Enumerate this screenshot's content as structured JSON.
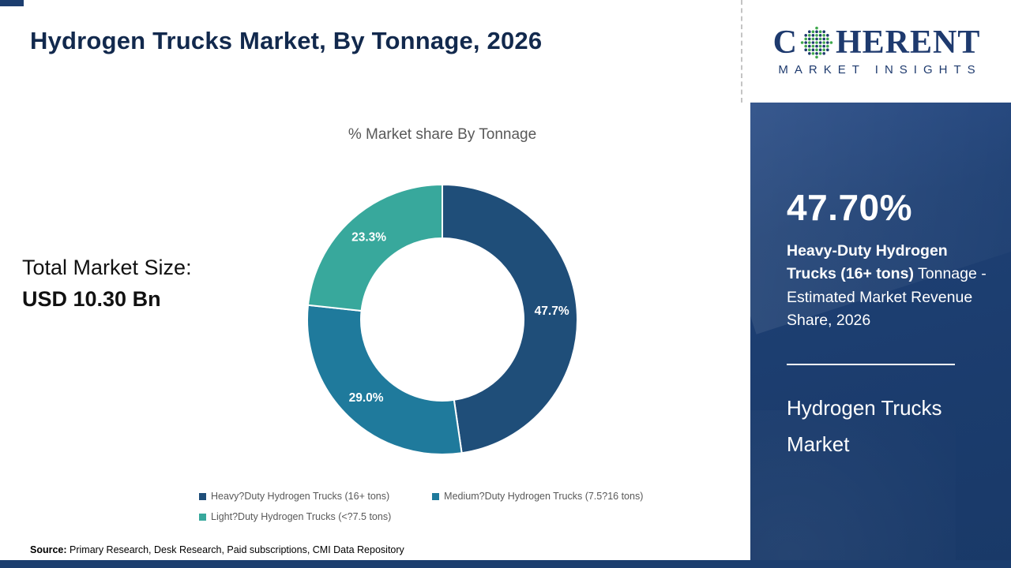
{
  "header": {
    "title": "Hydrogen Trucks Market, By Tonnage, 2026"
  },
  "logo": {
    "word_prefix": "C",
    "word_suffix": "HERENT",
    "tagline": "MARKET INSIGHTS",
    "navy_color": "#1e3a6e",
    "dot_colors": [
      "#3fa84c",
      "#1e3a6e"
    ]
  },
  "chart_data": {
    "type": "pie",
    "donut": true,
    "title": "% Market share By Tonnage",
    "labels": [
      "Heavy?Duty Hydrogen Trucks (16+ tons)",
      "Medium?Duty Hydrogen Trucks (7.5?16 tons)",
      "Light?Duty Hydrogen Trucks (<?7.5 tons)"
    ],
    "values": [
      47.7,
      29.0,
      23.3
    ],
    "value_labels": [
      "47.7%",
      "29.0%",
      "23.3%"
    ],
    "colors": [
      "#1f4e79",
      "#1f7a9c",
      "#38a89c"
    ],
    "legend_position": "bottom",
    "start_angle": "top",
    "direction": "clockwise"
  },
  "left_stat": {
    "label": "Total Market Size:",
    "value": "USD 10.30 Bn"
  },
  "source": {
    "label": "Source:",
    "text": " Primary Research, Desk Research, Paid subscriptions, CMI Data Repository"
  },
  "side_panel": {
    "bg_color": "#1b3c6d",
    "stat": "47.70%",
    "desc_bold": "Heavy-Duty Hydrogen Trucks (16+ tons)",
    "desc_rest": " Tonnage - Estimated Market Revenue Share, 2026",
    "footer": "Hydrogen Trucks Market"
  }
}
